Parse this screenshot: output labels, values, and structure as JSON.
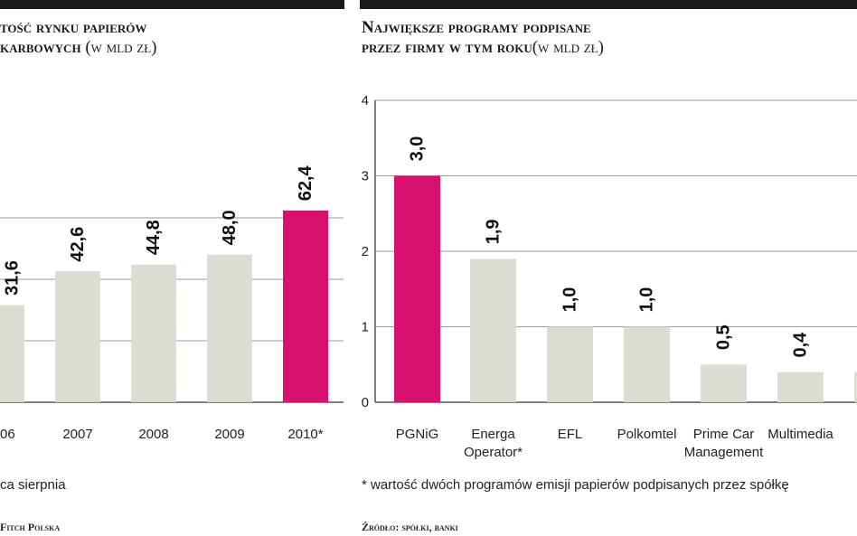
{
  "chart_data": [
    {
      "type": "bar",
      "title": "tość rynku papierów",
      "title_line2": "karbowych",
      "unit_label": "(w mld zł)",
      "categories": [
        "06",
        "2007",
        "2008",
        "2009",
        "2010*"
      ],
      "values": [
        31.6,
        42.6,
        44.8,
        48.0,
        62.4
      ],
      "value_labels": [
        "31,6",
        "42,6",
        "44,8",
        "48,0",
        "62,4"
      ],
      "highlight_index": 4,
      "ylim": [
        0,
        80
      ],
      "grid_values": [
        20,
        40,
        60
      ],
      "footnote": "ca sierpnia",
      "source": "Fitch Polska"
    },
    {
      "type": "bar",
      "title": "Największe programy podpisane",
      "title_line2": "przez firmy w tym roku",
      "unit_label": "(w mld zł)",
      "categories": [
        [
          "PGNiG"
        ],
        [
          "Energa",
          "Operator*"
        ],
        [
          "EFL"
        ],
        [
          "Polkomtel"
        ],
        [
          "Prime Car",
          "Management"
        ],
        [
          "Multimedia"
        ],
        [
          ""
        ]
      ],
      "values": [
        3.0,
        1.9,
        1.0,
        1.0,
        0.5,
        0.4,
        0.4
      ],
      "value_labels": [
        "3,0",
        "1,9",
        "1,0",
        "1,0",
        "0,5",
        "0,4",
        ""
      ],
      "highlight_index": 0,
      "ylim": [
        0,
        4
      ],
      "yticks": [
        "0",
        "1",
        "2",
        "3",
        "4"
      ],
      "footnote": "* wartość dwóch programów emisji papierów podpisanych przez spółkę",
      "source": "Źródło: spółki, banki"
    }
  ],
  "colors": {
    "bar": "#dcdcd2",
    "highlight": "#d6126e",
    "grid": "#9a9a9a",
    "axis": "#555555",
    "topbar": "#1a1a1a"
  }
}
